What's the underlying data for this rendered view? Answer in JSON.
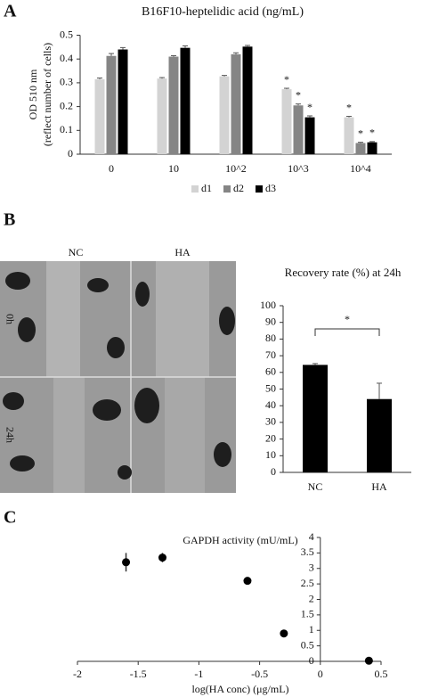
{
  "panel_labels": [
    "A",
    "B",
    "C"
  ],
  "micrograph": {
    "columns": [
      "NC",
      "HA"
    ],
    "rows": [
      "0h",
      "24h"
    ]
  },
  "chart_data": [
    {
      "type": "bar",
      "title": "B16F10-heptelidic acid  (ng/mL)",
      "ylabel": [
        "OD 510 nm",
        "(reflect  number of cells)"
      ],
      "categories": [
        "0",
        "10",
        "10^2",
        "10^3",
        "10^4"
      ],
      "series": [
        {
          "name": "d1",
          "color": "#d3d3d3",
          "values": [
            0.315,
            0.318,
            0.327,
            0.273,
            0.155
          ],
          "errors": [
            0.005,
            0.004,
            0.004,
            0.004,
            0.004
          ],
          "significance": [
            null,
            null,
            null,
            "*",
            "*"
          ]
        },
        {
          "name": "d2",
          "color": "#858585",
          "values": [
            0.413,
            0.41,
            0.42,
            0.205,
            0.047
          ],
          "errors": [
            0.01,
            0.004,
            0.006,
            0.006,
            0.003
          ],
          "significance": [
            null,
            null,
            null,
            "*",
            "*"
          ]
        },
        {
          "name": "d3",
          "color": "#000000",
          "values": [
            0.44,
            0.447,
            0.452,
            0.155,
            0.05
          ],
          "errors": [
            0.008,
            0.008,
            0.005,
            0.006,
            0.003
          ],
          "significance": [
            null,
            null,
            null,
            "*",
            "*"
          ]
        }
      ],
      "ylim": [
        0,
        0.5
      ],
      "yticks": [
        0,
        0.1,
        0.2,
        0.3,
        0.4,
        0.5
      ],
      "legend": "bottom"
    },
    {
      "type": "bar",
      "title": "Recovery rate (%) at 24h",
      "categories": [
        "NC",
        "HA"
      ],
      "values": [
        64.5,
        44
      ],
      "errors": [
        0.8,
        9.5
      ],
      "color": "#000000",
      "bracket_label": "*",
      "ylim": [
        0,
        100
      ],
      "yticks": [
        0,
        10,
        20,
        30,
        40,
        50,
        60,
        70,
        80,
        90,
        100
      ]
    },
    {
      "type": "scatter",
      "title": "GAPDH activity (mU/mL)",
      "xlabel": "log(HA conc) (μg/mL)",
      "x": [
        -1.6,
        -1.3,
        -0.6,
        -0.3,
        0.4
      ],
      "y": [
        3.2,
        3.35,
        2.6,
        0.9,
        0.02
      ],
      "errors": [
        0.3,
        0.15,
        0.05,
        0.05,
        0.02
      ],
      "color": "#000000",
      "xlim": [
        -2,
        0.5
      ],
      "xticks": [
        -2,
        -1.5,
        -1,
        -0.5,
        0,
        0.5
      ],
      "ylim": [
        0,
        4
      ],
      "yticks": [
        0,
        0.5,
        1,
        1.5,
        2,
        2.5,
        3,
        3.5,
        4
      ]
    }
  ]
}
